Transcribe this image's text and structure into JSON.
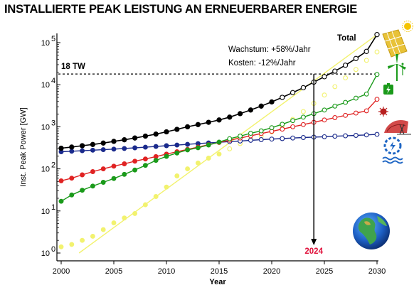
{
  "title": "INSTALLIERTE PEAK LEISTUNG AN ERNEUERBARER ENERGIE",
  "chart_data": {
    "type": "scatter",
    "title": "INSTALLIERTE PEAK LEISTUNG AN ERNEUERBARER ENERGIE",
    "xlabel": "Year",
    "ylabel": "Inst. Peak Power [GW]",
    "xlim": [
      2000,
      2030
    ],
    "ylim": [
      1,
      100000
    ],
    "yscale": "log",
    "grid": false,
    "x_ticks": [
      "2000",
      "2005",
      "2010",
      "2015",
      "2020",
      "2025",
      "2030"
    ],
    "y_ticks": [
      {
        "value": 1,
        "base": "10",
        "exp": "0"
      },
      {
        "value": 10,
        "base": "10",
        "exp": "1"
      },
      {
        "value": 100,
        "base": "10",
        "exp": "2"
      },
      {
        "value": 1000,
        "base": "10",
        "exp": "3"
      },
      {
        "value": 10000,
        "base": "10",
        "exp": "4"
      },
      {
        "value": 100000,
        "base": "10",
        "exp": "5"
      }
    ],
    "annotations": {
      "reference_line_label": "18 TW",
      "reference_line_value": 18000,
      "growth": "Wachstum: +58%/Jahr",
      "costs": "Kosten: -12%/Jahr",
      "total_label": "Total",
      "marker_year_label": "2024",
      "marker_year": 2024
    },
    "series": [
      {
        "key": "total",
        "color": "#000000",
        "fit": {
          "start": [
            2000,
            310
          ],
          "mid": [
            2015,
            1400
          ],
          "end": [
            2030,
            155000
          ]
        },
        "points": [
          [
            2000,
            310
          ],
          [
            2001,
            330
          ],
          [
            2002,
            355
          ],
          [
            2003,
            380
          ],
          [
            2004,
            410
          ],
          [
            2005,
            450
          ],
          [
            2006,
            490
          ],
          [
            2007,
            540
          ],
          [
            2008,
            600
          ],
          [
            2009,
            670
          ],
          [
            2010,
            760
          ],
          [
            2011,
            870
          ],
          [
            2012,
            1000
          ],
          [
            2013,
            1130
          ],
          [
            2014,
            1280
          ],
          [
            2015,
            1450
          ],
          [
            2016,
            1700
          ],
          [
            2017,
            2050
          ],
          [
            2018,
            2500
          ],
          [
            2019,
            3100
          ],
          [
            2020,
            3900
          ],
          [
            2021,
            5000
          ],
          [
            2022,
            6500
          ],
          [
            2023,
            8500
          ],
          [
            2024,
            11500
          ],
          [
            2025,
            15500
          ],
          [
            2026,
            21000
          ],
          [
            2027,
            29000
          ],
          [
            2028,
            42000
          ],
          [
            2029,
            62000
          ],
          [
            2030,
            155000
          ]
        ],
        "filled_until": 2020
      },
      {
        "key": "solar",
        "color": "#f2f26e",
        "fit": {
          "start": [
            2001.7,
            1
          ],
          "end": [
            2030,
            155000
          ]
        },
        "points": [
          [
            2000,
            1.4
          ],
          [
            2001,
            1.6
          ],
          [
            2002,
            2.0
          ],
          [
            2003,
            2.5
          ],
          [
            2004,
            3.6
          ],
          [
            2005,
            5.2
          ],
          [
            2006,
            6.8
          ],
          [
            2007,
            8.7
          ],
          [
            2008,
            14
          ],
          [
            2009,
            22
          ],
          [
            2010,
            37
          ],
          [
            2011,
            68
          ],
          [
            2012,
            100
          ],
          [
            2013,
            138
          ],
          [
            2014,
            180
          ],
          [
            2015,
            225
          ],
          [
            2016,
            300
          ],
          [
            2017,
            400
          ],
          [
            2018,
            500
          ],
          [
            2019,
            600
          ],
          [
            2020,
            760
          ],
          [
            2021,
            1050
          ],
          [
            2022,
            1500
          ],
          [
            2023,
            2300
          ],
          [
            2024,
            3600
          ],
          [
            2025,
            5700
          ],
          [
            2026,
            9000
          ],
          [
            2027,
            14500
          ],
          [
            2028,
            23000
          ],
          [
            2029,
            38000
          ],
          [
            2030,
            60000
          ]
        ],
        "filled_until": 2015
      },
      {
        "key": "wind",
        "color": "#1a9a1a",
        "fit": {
          "start": [
            2000,
            17
          ],
          "end": [
            2030,
            17500
          ]
        },
        "points": [
          [
            2000,
            17
          ],
          [
            2001,
            24
          ],
          [
            2002,
            31
          ],
          [
            2003,
            39
          ],
          [
            2004,
            48
          ],
          [
            2005,
            59
          ],
          [
            2006,
            74
          ],
          [
            2007,
            94
          ],
          [
            2008,
            121
          ],
          [
            2009,
            159
          ],
          [
            2010,
            198
          ],
          [
            2011,
            238
          ],
          [
            2012,
            283
          ],
          [
            2013,
            318
          ],
          [
            2014,
            370
          ],
          [
            2015,
            433
          ],
          [
            2016,
            520
          ],
          [
            2017,
            600
          ],
          [
            2018,
            700
          ],
          [
            2019,
            800
          ],
          [
            2020,
            950
          ],
          [
            2021,
            1150
          ],
          [
            2022,
            1400
          ],
          [
            2023,
            1700
          ],
          [
            2024,
            2050
          ],
          [
            2025,
            2500
          ],
          [
            2026,
            3100
          ],
          [
            2027,
            3800
          ],
          [
            2028,
            4800
          ],
          [
            2029,
            6000
          ],
          [
            2030,
            17500
          ]
        ],
        "filled_until": 2015
      },
      {
        "key": "other",
        "color": "#e02222",
        "fit": {
          "start": [
            2000,
            52
          ],
          "end": [
            2030,
            4500
          ]
        },
        "points": [
          [
            2000,
            52
          ],
          [
            2001,
            60
          ],
          [
            2002,
            72
          ],
          [
            2003,
            86
          ],
          [
            2004,
            100
          ],
          [
            2005,
            116
          ],
          [
            2006,
            132
          ],
          [
            2007,
            152
          ],
          [
            2008,
            172
          ],
          [
            2009,
            196
          ],
          [
            2010,
            225
          ],
          [
            2011,
            255
          ],
          [
            2012,
            290
          ],
          [
            2013,
            330
          ],
          [
            2014,
            375
          ],
          [
            2015,
            425
          ],
          [
            2016,
            480
          ],
          [
            2017,
            540
          ],
          [
            2018,
            610
          ],
          [
            2019,
            690
          ],
          [
            2020,
            780
          ],
          [
            2021,
            880
          ],
          [
            2022,
            1000
          ],
          [
            2023,
            1130
          ],
          [
            2024,
            1280
          ],
          [
            2025,
            1450
          ],
          [
            2026,
            1650
          ],
          [
            2027,
            1870
          ],
          [
            2028,
            2120
          ],
          [
            2029,
            2400
          ],
          [
            2030,
            4500
          ]
        ],
        "filled_until": 2015
      },
      {
        "key": "hydro",
        "color": "#1a2a8c",
        "fit": {
          "start": [
            2000,
            255
          ],
          "end": [
            2030,
            660
          ]
        },
        "points": [
          [
            2000,
            255
          ],
          [
            2001,
            262
          ],
          [
            2002,
            270
          ],
          [
            2003,
            278
          ],
          [
            2004,
            286
          ],
          [
            2005,
            295
          ],
          [
            2006,
            305
          ],
          [
            2007,
            316
          ],
          [
            2008,
            328
          ],
          [
            2009,
            340
          ],
          [
            2010,
            355
          ],
          [
            2011,
            368
          ],
          [
            2012,
            382
          ],
          [
            2013,
            398
          ],
          [
            2014,
            413
          ],
          [
            2015,
            428
          ],
          [
            2016,
            445
          ],
          [
            2017,
            460
          ],
          [
            2018,
            478
          ],
          [
            2019,
            495
          ],
          [
            2020,
            510
          ],
          [
            2021,
            525
          ],
          [
            2022,
            540
          ],
          [
            2023,
            555
          ],
          [
            2024,
            568
          ],
          [
            2025,
            580
          ],
          [
            2026,
            595
          ],
          [
            2027,
            610
          ],
          [
            2028,
            625
          ],
          [
            2029,
            642
          ],
          [
            2030,
            660
          ]
        ],
        "filled_until": 2015
      }
    ]
  },
  "icons": [
    "solar-panel-icon",
    "sun-icon",
    "wind-turbine-icon",
    "battery-plug-icon",
    "virus-icon",
    "geothermal-icon",
    "hydro-turbine-icon",
    "earth-globe-icon"
  ]
}
